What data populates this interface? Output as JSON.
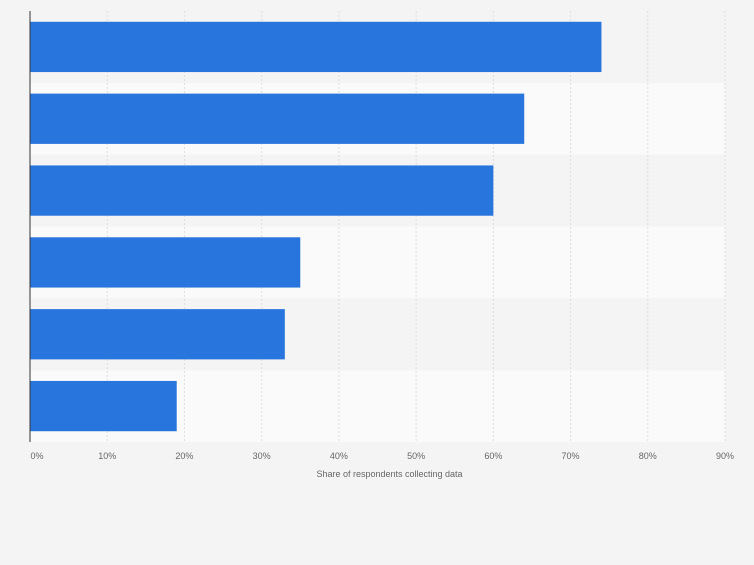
{
  "chart_data": {
    "type": "bar",
    "orientation": "horizontal",
    "categories": [
      "",
      "",
      "",
      "",
      "",
      ""
    ],
    "values": [
      74,
      64,
      60,
      35,
      33,
      19
    ],
    "xlabel": "Share of respondents collecting data",
    "ylabel": "",
    "xlim": [
      0,
      90
    ],
    "x_ticks": [
      "0%",
      "10%",
      "20%",
      "30%",
      "40%",
      "50%",
      "60%",
      "70%",
      "80%",
      "90%"
    ],
    "grid": true,
    "colors": {
      "bar": "#2876dd",
      "band_dark": "#f4f4f4",
      "band_light": "#fafafa",
      "grid": "#dedede",
      "axis": "#333333",
      "tick_text": "#666666"
    }
  }
}
